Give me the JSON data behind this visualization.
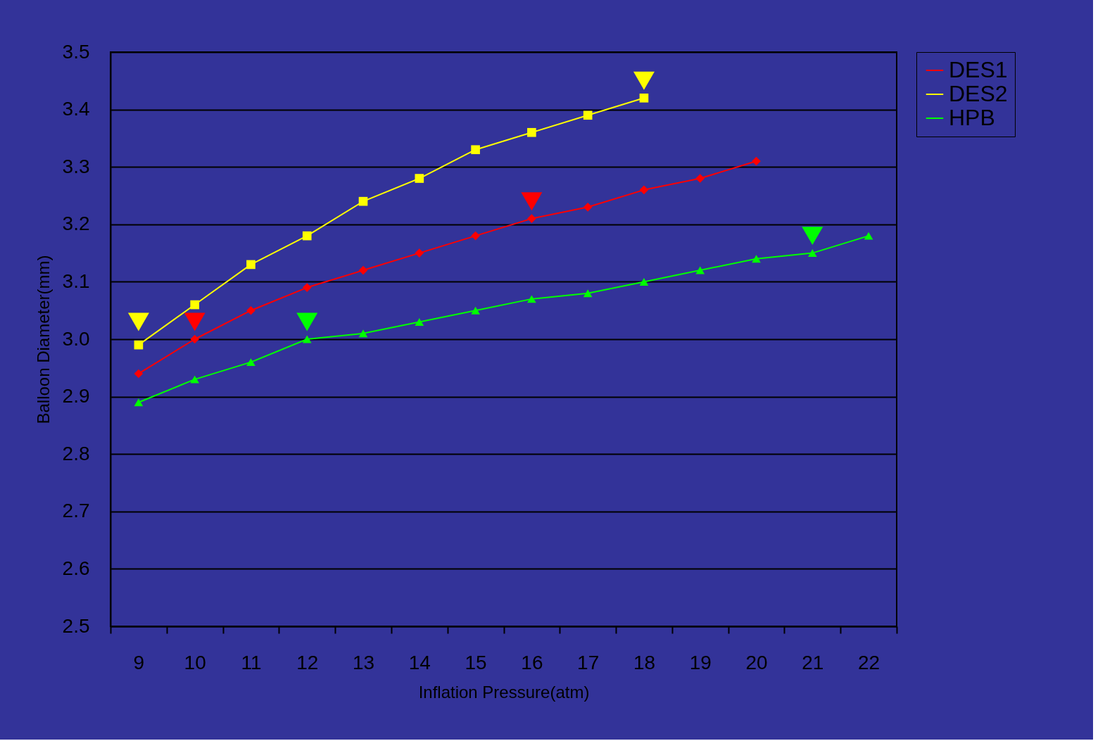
{
  "chart_data": {
    "type": "line",
    "xlabel": "Inflation Pressure(atm)",
    "ylabel": "Balloon Diameter(mm)",
    "categories": [
      "9",
      "10",
      "11",
      "12",
      "13",
      "14",
      "15",
      "16",
      "17",
      "18",
      "19",
      "20",
      "21",
      "22"
    ],
    "ylim": [
      2.5,
      3.5
    ],
    "yticks": [
      2.5,
      2.6,
      2.7,
      2.8,
      2.9,
      {
        "value": 3,
        "label": "3.0"
      },
      3.1,
      3.2,
      3.3,
      3.4,
      3.5
    ],
    "grid": "y",
    "legend": "right",
    "series": [
      {
        "name": "DES1",
        "color": "#ff0000",
        "marker": "diamond",
        "values": [
          2.94,
          3.0,
          3.05,
          3.09,
          3.12,
          3.15,
          3.18,
          3.21,
          3.23,
          3.26,
          3.28,
          3.31,
          null,
          null
        ]
      },
      {
        "name": "DES2",
        "color": "#ffff00",
        "marker": "square",
        "values": [
          2.99,
          3.06,
          3.13,
          3.18,
          3.24,
          3.28,
          3.33,
          3.36,
          3.39,
          3.42,
          null,
          null,
          null,
          null
        ]
      },
      {
        "name": "HPB",
        "color": "#00ff00",
        "marker": "triangle",
        "values": [
          2.89,
          2.93,
          2.96,
          3.0,
          3.01,
          3.03,
          3.05,
          3.07,
          3.08,
          3.1,
          3.12,
          3.14,
          3.15,
          3.18
        ]
      },
      {
        "type": "scatter",
        "color": "#ffff00",
        "marker": "triangle",
        "values": [
          3.03,
          null,
          null,
          null,
          null,
          null,
          null,
          null,
          null,
          3.45,
          null,
          null,
          null,
          null
        ]
      },
      {
        "type": "scatter",
        "color": "#ff0000",
        "marker": "triangle",
        "values": [
          null,
          3.03,
          null,
          null,
          null,
          null,
          null,
          3.24,
          null,
          null,
          null,
          null,
          null,
          null
        ]
      },
      {
        "type": "scatter",
        "color": "#00ff00",
        "marker": "triangle",
        "values": [
          null,
          null,
          null,
          3.03,
          null,
          null,
          null,
          null,
          null,
          null,
          null,
          null,
          3.18,
          null
        ]
      }
    ]
  }
}
